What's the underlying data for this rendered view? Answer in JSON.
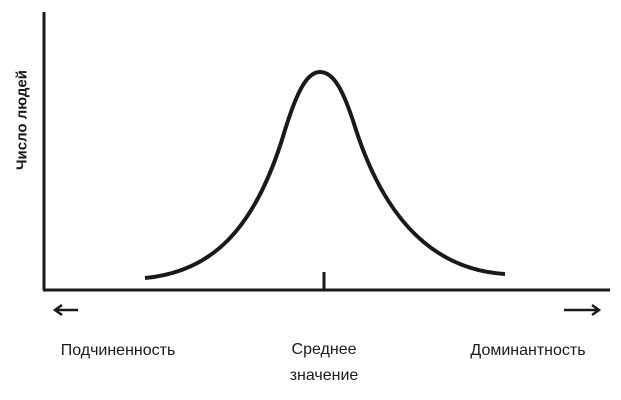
{
  "axis_label": "Число людей",
  "scale": {
    "left": "Подчиненность",
    "middle": [
      "Среднее",
      "значение"
    ],
    "right": "Доминантность"
  }
}
